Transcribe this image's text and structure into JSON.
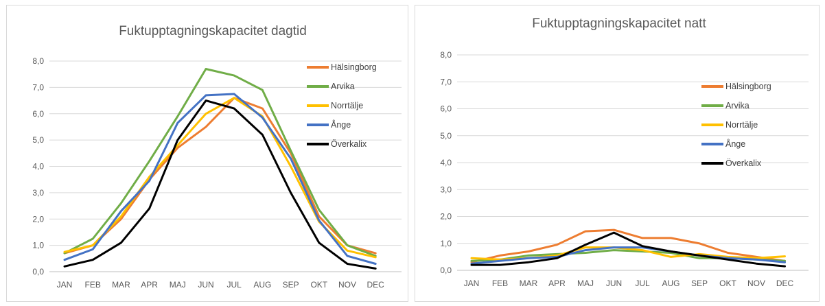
{
  "chart_data": [
    {
      "type": "line",
      "title": "Fuktupptagningskapacitet dagtid",
      "categories": [
        "JAN",
        "FEB",
        "MAR",
        "APR",
        "MAJ",
        "JUN",
        "JUL",
        "AUG",
        "SEP",
        "OKT",
        "NOV",
        "DEC"
      ],
      "ylim": [
        0,
        8
      ],
      "yticks": [
        "0,0",
        "1,0",
        "2,0",
        "3,0",
        "4,0",
        "5,0",
        "6,0",
        "7,0",
        "8,0"
      ],
      "grid": true,
      "legend_position": "right",
      "series": [
        {
          "name": "Hälsingborg",
          "color": "#ED7D31",
          "values": [
            0.7,
            1.0,
            2.0,
            3.5,
            4.7,
            5.5,
            6.6,
            6.2,
            4.5,
            2.1,
            1.0,
            0.7
          ]
        },
        {
          "name": "Arvika",
          "color": "#70AD47",
          "values": [
            0.7,
            1.25,
            2.6,
            4.2,
            5.9,
            7.7,
            7.45,
            6.9,
            4.6,
            2.35,
            1.0,
            0.6
          ]
        },
        {
          "name": "Norrtälje",
          "color": "#FFC000",
          "values": [
            0.75,
            1.0,
            2.1,
            3.6,
            4.8,
            6.0,
            6.6,
            5.9,
            4.0,
            1.9,
            0.8,
            0.55
          ]
        },
        {
          "name": "Ånge",
          "color": "#4472C4",
          "values": [
            0.45,
            0.85,
            2.3,
            3.45,
            5.65,
            6.7,
            6.75,
            5.85,
            4.3,
            1.95,
            0.6,
            0.3
          ]
        },
        {
          "name": "Överkalix",
          "color": "#000000",
          "values": [
            0.2,
            0.45,
            1.1,
            2.4,
            5.0,
            6.5,
            6.2,
            5.2,
            3.0,
            1.1,
            0.3,
            0.12
          ]
        }
      ]
    },
    {
      "type": "line",
      "title": "Fuktupptagningskapacitet natt",
      "categories": [
        "JAN",
        "FEB",
        "MAR",
        "APR",
        "MAJ",
        "JUN",
        "JUL",
        "AUG",
        "SEP",
        "OKT",
        "NOV",
        "DEC"
      ],
      "ylim": [
        0,
        8
      ],
      "yticks": [
        "0,0",
        "1,0",
        "2,0",
        "3,0",
        "4,0",
        "5,0",
        "6,0",
        "7,0",
        "8,0"
      ],
      "grid": true,
      "legend_position": "right",
      "series": [
        {
          "name": "Hälsingborg",
          "color": "#ED7D31",
          "values": [
            0.3,
            0.55,
            0.7,
            0.95,
            1.45,
            1.5,
            1.2,
            1.2,
            1.0,
            0.65,
            0.5,
            0.35
          ]
        },
        {
          "name": "Arvika",
          "color": "#70AD47",
          "values": [
            0.35,
            0.4,
            0.55,
            0.6,
            0.65,
            0.75,
            0.7,
            0.65,
            0.45,
            0.45,
            0.4,
            0.35
          ]
        },
        {
          "name": "Norrtälje",
          "color": "#FFC000",
          "values": [
            0.45,
            0.4,
            0.45,
            0.55,
            0.85,
            0.85,
            0.75,
            0.5,
            0.6,
            0.5,
            0.45,
            0.52
          ]
        },
        {
          "name": "Ånge",
          "color": "#4472C4",
          "values": [
            0.25,
            0.35,
            0.45,
            0.5,
            0.75,
            0.85,
            0.85,
            0.7,
            0.55,
            0.45,
            0.4,
            0.3
          ]
        },
        {
          "name": "Överkalix",
          "color": "#000000",
          "values": [
            0.2,
            0.2,
            0.3,
            0.45,
            0.95,
            1.4,
            0.9,
            0.7,
            0.55,
            0.4,
            0.25,
            0.15
          ]
        }
      ]
    }
  ]
}
